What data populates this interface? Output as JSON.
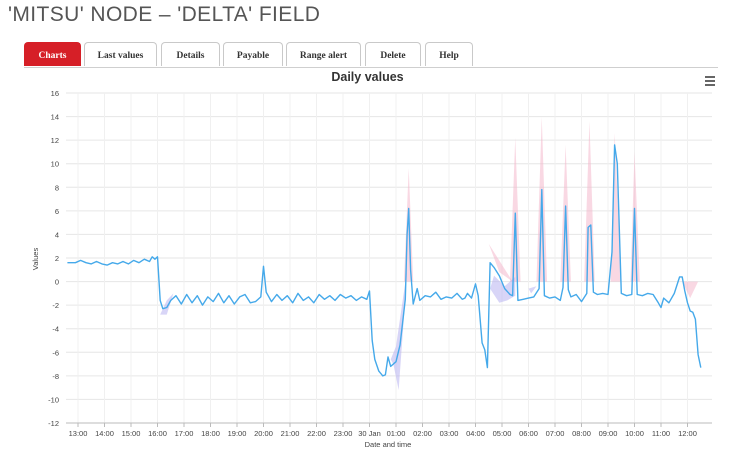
{
  "header": {
    "title": "'MITSU' NODE – 'DELTA' FIELD"
  },
  "tabs": [
    {
      "label": "Charts",
      "active": true
    },
    {
      "label": "Last values",
      "active": false
    },
    {
      "label": "Details",
      "active": false
    },
    {
      "label": "Payable",
      "active": false
    },
    {
      "label": "Range alert",
      "active": false
    },
    {
      "label": "Delete",
      "active": false
    },
    {
      "label": "Help",
      "active": false
    }
  ],
  "menu_icon": "hamburger-menu-icon",
  "colors": {
    "accent": "#d61f27",
    "line": "#45a9ea",
    "band_low": "#b8b2f0",
    "band_high": "#f4b8cc",
    "grid": "#e6e6e6"
  },
  "chart_data": {
    "type": "line",
    "title": "Daily values",
    "xlabel": "Date and time",
    "ylabel": "Values",
    "ylim": [
      -12,
      16
    ],
    "yticks": [
      16,
      14,
      12,
      10,
      8,
      6,
      4,
      2,
      0,
      -2,
      -4,
      -6,
      -8,
      -10,
      -12
    ],
    "xlim": [
      12.5,
      36.6
    ],
    "xticks": [
      {
        "x": 13,
        "label": "13:00"
      },
      {
        "x": 14,
        "label": "14:00"
      },
      {
        "x": 15,
        "label": "15:00"
      },
      {
        "x": 16,
        "label": "16:00"
      },
      {
        "x": 17,
        "label": "17:00"
      },
      {
        "x": 18,
        "label": "18:00"
      },
      {
        "x": 19,
        "label": "19:00"
      },
      {
        "x": 20,
        "label": "20:00"
      },
      {
        "x": 21,
        "label": "21:00"
      },
      {
        "x": 22,
        "label": "22:00"
      },
      {
        "x": 23,
        "label": "23:00"
      },
      {
        "x": 24,
        "label": "30 Jan"
      },
      {
        "x": 25,
        "label": "01:00"
      },
      {
        "x": 26,
        "label": "02:00"
      },
      {
        "x": 27,
        "label": "03:00"
      },
      {
        "x": 28,
        "label": "04:00"
      },
      {
        "x": 29,
        "label": "05:00"
      },
      {
        "x": 30,
        "label": "06:00"
      },
      {
        "x": 31,
        "label": "07:00"
      },
      {
        "x": 32,
        "label": "08:00"
      },
      {
        "x": 33,
        "label": "09:00"
      },
      {
        "x": 34,
        "label": "10:00"
      },
      {
        "x": 35,
        "label": "11:00"
      },
      {
        "x": 36,
        "label": "12:00"
      }
    ],
    "grid": true,
    "legend": "none",
    "series": [
      {
        "name": "",
        "points": [
          [
            12.6,
            1.6
          ],
          [
            12.9,
            1.6
          ],
          [
            13.1,
            1.8
          ],
          [
            13.3,
            1.6
          ],
          [
            13.5,
            1.5
          ],
          [
            13.7,
            1.7
          ],
          [
            13.9,
            1.5
          ],
          [
            14.1,
            1.4
          ],
          [
            14.3,
            1.6
          ],
          [
            14.5,
            1.5
          ],
          [
            14.7,
            1.7
          ],
          [
            14.9,
            1.5
          ],
          [
            15.1,
            1.8
          ],
          [
            15.3,
            1.6
          ],
          [
            15.5,
            1.9
          ],
          [
            15.7,
            1.7
          ],
          [
            15.8,
            2.1
          ],
          [
            15.9,
            1.9
          ],
          [
            16.0,
            2.1
          ],
          [
            16.1,
            -1.6
          ],
          [
            16.2,
            -2.3
          ],
          [
            16.35,
            -2.2
          ],
          [
            16.5,
            -1.6
          ],
          [
            16.7,
            -1.2
          ],
          [
            16.9,
            -1.9
          ],
          [
            17.1,
            -1.1
          ],
          [
            17.3,
            -1.8
          ],
          [
            17.5,
            -1.2
          ],
          [
            17.7,
            -2.0
          ],
          [
            17.9,
            -1.3
          ],
          [
            18.1,
            -1.7
          ],
          [
            18.3,
            -1.0
          ],
          [
            18.5,
            -1.8
          ],
          [
            18.7,
            -1.2
          ],
          [
            18.9,
            -1.9
          ],
          [
            19.1,
            -1.3
          ],
          [
            19.3,
            -1.1
          ],
          [
            19.5,
            -1.8
          ],
          [
            19.7,
            -1.7
          ],
          [
            19.9,
            -1.3
          ],
          [
            20.0,
            1.3
          ],
          [
            20.1,
            -0.9
          ],
          [
            20.3,
            -1.7
          ],
          [
            20.5,
            -1.1
          ],
          [
            20.7,
            -1.6
          ],
          [
            20.9,
            -1.2
          ],
          [
            21.1,
            -1.8
          ],
          [
            21.3,
            -1.0
          ],
          [
            21.5,
            -1.6
          ],
          [
            21.7,
            -1.3
          ],
          [
            21.9,
            -1.8
          ],
          [
            22.1,
            -1.1
          ],
          [
            22.3,
            -1.5
          ],
          [
            22.5,
            -1.2
          ],
          [
            22.7,
            -1.6
          ],
          [
            22.9,
            -1.1
          ],
          [
            23.1,
            -1.4
          ],
          [
            23.3,
            -1.2
          ],
          [
            23.5,
            -1.6
          ],
          [
            23.7,
            -1.3
          ],
          [
            23.9,
            -1.5
          ],
          [
            24.0,
            -0.8
          ],
          [
            24.1,
            -5.0
          ],
          [
            24.2,
            -6.6
          ],
          [
            24.35,
            -7.6
          ],
          [
            24.5,
            -8.0
          ],
          [
            24.6,
            -7.9
          ],
          [
            24.7,
            -6.4
          ],
          [
            24.8,
            -7.2
          ],
          [
            25.0,
            -6.8
          ],
          [
            25.15,
            -5.4
          ],
          [
            25.25,
            -3.5
          ],
          [
            25.35,
            -1.5
          ],
          [
            25.42,
            4.0
          ],
          [
            25.48,
            6.2
          ],
          [
            25.55,
            1.0
          ],
          [
            25.65,
            -1.9
          ],
          [
            25.8,
            -0.6
          ],
          [
            25.9,
            -1.6
          ],
          [
            26.1,
            -1.2
          ],
          [
            26.3,
            -1.3
          ],
          [
            26.5,
            -0.9
          ],
          [
            26.7,
            -1.5
          ],
          [
            26.9,
            -1.3
          ],
          [
            27.1,
            -1.4
          ],
          [
            27.3,
            -1.0
          ],
          [
            27.5,
            -1.5
          ],
          [
            27.6,
            -1.4
          ],
          [
            27.7,
            -1.0
          ],
          [
            27.85,
            -1.4
          ],
          [
            28.0,
            -0.2
          ],
          [
            28.1,
            -1.2
          ],
          [
            28.25,
            -5.2
          ],
          [
            28.35,
            -5.8
          ],
          [
            28.45,
            -7.3
          ],
          [
            28.55,
            1.6
          ],
          [
            28.7,
            1.2
          ],
          [
            28.9,
            0.5
          ],
          [
            29.1,
            -0.6
          ],
          [
            29.3,
            -1.1
          ],
          [
            29.4,
            -1.2
          ],
          [
            29.5,
            5.8
          ],
          [
            29.6,
            -1.6
          ],
          [
            29.8,
            -1.5
          ],
          [
            30.0,
            -1.4
          ],
          [
            30.2,
            -1.3
          ],
          [
            30.4,
            -0.6
          ],
          [
            30.5,
            7.8
          ],
          [
            30.6,
            -1.2
          ],
          [
            30.8,
            -1.4
          ],
          [
            31.0,
            -1.3
          ],
          [
            31.2,
            -1.6
          ],
          [
            31.3,
            -0.5
          ],
          [
            31.4,
            6.4
          ],
          [
            31.5,
            -0.7
          ],
          [
            31.6,
            -1.3
          ],
          [
            31.8,
            -1.1
          ],
          [
            32.0,
            -1.7
          ],
          [
            32.2,
            -1.0
          ],
          [
            32.25,
            4.6
          ],
          [
            32.35,
            4.8
          ],
          [
            32.45,
            -0.9
          ],
          [
            32.6,
            -1.1
          ],
          [
            32.8,
            -1.0
          ],
          [
            33.0,
            -1.1
          ],
          [
            33.15,
            2.5
          ],
          [
            33.25,
            11.6
          ],
          [
            33.35,
            10.0
          ],
          [
            33.5,
            -1.0
          ],
          [
            33.7,
            -1.2
          ],
          [
            33.9,
            -1.1
          ],
          [
            34.0,
            6.2
          ],
          [
            34.1,
            -1.1
          ],
          [
            34.3,
            -1.2
          ],
          [
            34.5,
            -1.0
          ],
          [
            34.7,
            -1.1
          ],
          [
            34.9,
            -1.8
          ],
          [
            35.0,
            -2.2
          ],
          [
            35.1,
            -1.4
          ],
          [
            35.3,
            -1.8
          ],
          [
            35.5,
            -1.0
          ],
          [
            35.7,
            0.4
          ],
          [
            35.8,
            0.4
          ],
          [
            35.9,
            -0.8
          ],
          [
            36.0,
            -1.8
          ],
          [
            36.1,
            -2.5
          ],
          [
            36.2,
            -2.6
          ],
          [
            36.3,
            -3.2
          ],
          [
            36.4,
            -6.2
          ],
          [
            36.5,
            -7.3
          ]
        ]
      }
    ],
    "range_bands": [
      {
        "color": "high",
        "points": [
          [
            29.3,
            0
          ],
          [
            29.5,
            12.2
          ],
          [
            29.7,
            0
          ]
        ]
      },
      {
        "color": "high",
        "points": [
          [
            30.3,
            0
          ],
          [
            30.5,
            14.0
          ],
          [
            30.7,
            0
          ]
        ]
      },
      {
        "color": "high",
        "points": [
          [
            31.2,
            0
          ],
          [
            31.4,
            11.6
          ],
          [
            31.6,
            0
          ]
        ]
      },
      {
        "color": "high",
        "points": [
          [
            32.1,
            0
          ],
          [
            32.3,
            13.6
          ],
          [
            32.5,
            0
          ]
        ]
      },
      {
        "color": "high",
        "points": [
          [
            33.1,
            0
          ],
          [
            33.25,
            12.6
          ],
          [
            33.5,
            0
          ]
        ]
      },
      {
        "color": "high",
        "points": [
          [
            33.85,
            0
          ],
          [
            34.0,
            11.0
          ],
          [
            34.2,
            0
          ]
        ]
      },
      {
        "color": "high",
        "points": [
          [
            25.3,
            0
          ],
          [
            25.48,
            9.6
          ],
          [
            25.65,
            0
          ]
        ]
      },
      {
        "color": "high",
        "points": [
          [
            28.5,
            3.2
          ],
          [
            28.9,
            0.8
          ],
          [
            29.4,
            0
          ]
        ]
      },
      {
        "color": "high",
        "points": [
          [
            35.8,
            0
          ],
          [
            36.1,
            -1.4
          ],
          [
            36.4,
            0
          ]
        ]
      },
      {
        "color": "low",
        "points": [
          [
            24.9,
            -7.0
          ],
          [
            25.1,
            -9.2
          ],
          [
            25.3,
            -3.0
          ],
          [
            25.42,
            1.0
          ],
          [
            25.0,
            -5.5
          ],
          [
            24.8,
            -6.6
          ]
        ]
      },
      {
        "color": "low",
        "points": [
          [
            28.55,
            -0.6
          ],
          [
            28.9,
            -1.8
          ],
          [
            29.2,
            -1.6
          ],
          [
            29.5,
            -1.2
          ],
          [
            29.5,
            0.4
          ],
          [
            29.1,
            -0.4
          ],
          [
            28.7,
            0.5
          ]
        ]
      },
      {
        "color": "low",
        "points": [
          [
            16.1,
            -2.8
          ],
          [
            16.35,
            -2.8
          ],
          [
            16.6,
            -1.0
          ],
          [
            16.35,
            -1.6
          ]
        ]
      },
      {
        "color": "low",
        "points": [
          [
            30.0,
            -0.6
          ],
          [
            30.3,
            -0.4
          ],
          [
            30.1,
            -1.0
          ]
        ]
      }
    ]
  }
}
